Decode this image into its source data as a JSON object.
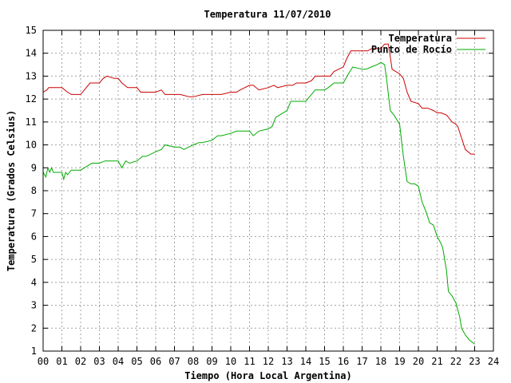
{
  "chart_data": {
    "type": "line",
    "title": "Temperatura 11/07/2010",
    "xlabel": "Tiempo (Hora Local Argentina)",
    "ylabel": "Temperatura (Grados Celsius)",
    "xlim": [
      0,
      24
    ],
    "ylim": [
      1,
      15
    ],
    "xticks": [
      "00",
      "01",
      "02",
      "03",
      "04",
      "05",
      "06",
      "07",
      "08",
      "09",
      "10",
      "11",
      "12",
      "13",
      "14",
      "15",
      "16",
      "17",
      "18",
      "19",
      "20",
      "21",
      "22",
      "23",
      "24"
    ],
    "yticks": [
      1,
      2,
      3,
      4,
      5,
      6,
      7,
      8,
      9,
      10,
      11,
      12,
      13,
      14,
      15
    ],
    "grid": true,
    "legend_position": "top-right",
    "series": [
      {
        "name": "Temperatura",
        "color": "#cc0000",
        "x": [
          0,
          0.2,
          0.3,
          0.5,
          1.0,
          1.3,
          1.5,
          2.0,
          2.3,
          2.5,
          3.0,
          3.2,
          3.4,
          3.8,
          4.0,
          4.2,
          4.5,
          5.0,
          5.2,
          5.4,
          6.0,
          6.3,
          6.5,
          7.0,
          7.3,
          7.8,
          8.0,
          8.5,
          9.0,
          9.5,
          10.0,
          10.3,
          10.5,
          11.0,
          11.2,
          11.5,
          12.0,
          12.3,
          12.5,
          13.0,
          13.3,
          13.5,
          14.0,
          14.3,
          14.5,
          15.0,
          15.3,
          15.5,
          16.0,
          16.2,
          16.4,
          16.8,
          17.0,
          17.3,
          17.5,
          17.8,
          18.0,
          18.2,
          18.4,
          18.6,
          18.8,
          19.0,
          19.2,
          19.4,
          19.6,
          20.0,
          20.2,
          20.5,
          20.8,
          21.0,
          21.2,
          21.5,
          21.8,
          22.0,
          22.1,
          22.3,
          22.5,
          22.8,
          23.0
        ],
        "values": [
          12.3,
          12.4,
          12.5,
          12.5,
          12.5,
          12.3,
          12.2,
          12.2,
          12.5,
          12.7,
          12.7,
          12.9,
          13.0,
          12.9,
          12.9,
          12.7,
          12.5,
          12.5,
          12.3,
          12.3,
          12.3,
          12.4,
          12.2,
          12.2,
          12.2,
          12.1,
          12.1,
          12.2,
          12.2,
          12.2,
          12.3,
          12.3,
          12.4,
          12.6,
          12.6,
          12.4,
          12.5,
          12.6,
          12.5,
          12.6,
          12.6,
          12.7,
          12.7,
          12.8,
          13.0,
          13.0,
          13.0,
          13.2,
          13.4,
          13.8,
          14.1,
          14.1,
          14.1,
          14.1,
          14.2,
          14.2,
          14.2,
          14.4,
          14.4,
          13.3,
          13.2,
          13.1,
          12.9,
          12.3,
          11.9,
          11.8,
          11.6,
          11.6,
          11.5,
          11.4,
          11.4,
          11.3,
          11.0,
          10.9,
          10.8,
          10.3,
          9.8,
          9.6,
          9.6
        ]
      },
      {
        "name": "Punto de Rocío",
        "color": "#00aa00",
        "x": [
          0,
          0.15,
          0.25,
          0.35,
          0.45,
          0.55,
          0.7,
          1.0,
          1.1,
          1.2,
          1.3,
          1.5,
          2.0,
          2.2,
          2.4,
          2.6,
          3.0,
          3.3,
          3.5,
          4.0,
          4.2,
          4.4,
          4.6,
          5.0,
          5.3,
          5.5,
          6.0,
          6.3,
          6.5,
          7.0,
          7.3,
          7.5,
          8.0,
          8.3,
          8.5,
          9.0,
          9.3,
          9.5,
          10.0,
          10.3,
          10.5,
          11.0,
          11.2,
          11.5,
          12.0,
          12.2,
          12.4,
          12.6,
          13.0,
          13.2,
          13.5,
          14.0,
          14.2,
          14.5,
          15.0,
          15.2,
          15.5,
          16.0,
          16.2,
          16.5,
          17.0,
          17.2,
          17.5,
          17.8,
          18.0,
          18.2,
          18.3,
          18.5,
          18.7,
          19.0,
          19.2,
          19.4,
          19.6,
          19.8,
          20.0,
          20.2,
          20.4,
          20.6,
          20.8,
          21.0,
          21.2,
          21.3,
          21.5,
          21.6,
          21.8,
          22.0,
          22.2,
          22.3,
          22.5,
          22.7,
          23.0
        ],
        "values": [
          8.8,
          8.6,
          9.0,
          8.8,
          9.0,
          8.8,
          8.8,
          8.8,
          8.5,
          8.8,
          8.7,
          8.9,
          8.9,
          9.0,
          9.1,
          9.2,
          9.2,
          9.3,
          9.3,
          9.3,
          9.0,
          9.3,
          9.2,
          9.3,
          9.5,
          9.5,
          9.7,
          9.8,
          10.0,
          9.9,
          9.9,
          9.8,
          10.0,
          10.1,
          10.1,
          10.2,
          10.4,
          10.4,
          10.5,
          10.6,
          10.6,
          10.6,
          10.4,
          10.6,
          10.7,
          10.8,
          11.2,
          11.3,
          11.5,
          11.9,
          11.9,
          11.9,
          12.1,
          12.4,
          12.4,
          12.5,
          12.7,
          12.7,
          13.0,
          13.4,
          13.3,
          13.3,
          13.4,
          13.5,
          13.6,
          13.5,
          12.9,
          11.5,
          11.3,
          10.9,
          9.5,
          8.4,
          8.3,
          8.3,
          8.2,
          7.5,
          7.1,
          6.6,
          6.5,
          6.0,
          5.7,
          5.5,
          4.5,
          3.6,
          3.4,
          3.1,
          2.5,
          2.0,
          1.7,
          1.5,
          1.3
        ]
      }
    ]
  }
}
